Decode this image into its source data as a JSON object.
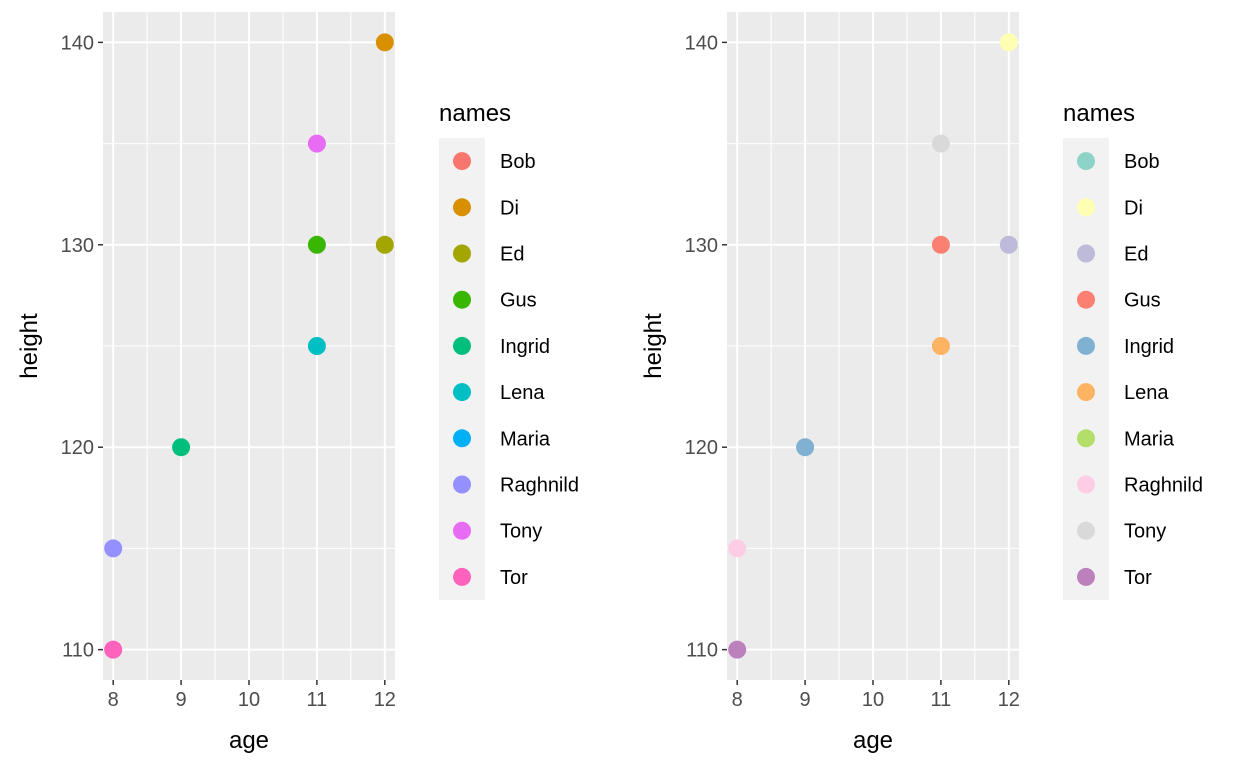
{
  "chart_data": [
    {
      "type": "scatter",
      "xlabel": "age",
      "ylabel": "height",
      "xlim": [
        7.85,
        12.15
      ],
      "ylim": [
        108.5,
        141.5
      ],
      "x_ticks": [
        8,
        9,
        10,
        11,
        12
      ],
      "y_ticks": [
        110,
        120,
        130,
        140
      ],
      "x_tick_labels": [
        "8",
        "9",
        "10",
        "11",
        "12"
      ],
      "y_tick_labels": [
        "110",
        "120",
        "130",
        "140"
      ],
      "grid": true,
      "legend": {
        "title": "names",
        "position": "right"
      },
      "series": [
        {
          "name": "Bob",
          "color": "#F8766D",
          "x": [],
          "y": []
        },
        {
          "name": "Di",
          "color": "#D89000",
          "x": [
            12
          ],
          "y": [
            140
          ]
        },
        {
          "name": "Ed",
          "color": "#A3A500",
          "x": [
            12
          ],
          "y": [
            130
          ]
        },
        {
          "name": "Gus",
          "color": "#39B600",
          "x": [
            11
          ],
          "y": [
            130
          ]
        },
        {
          "name": "Ingrid",
          "color": "#00BF7D",
          "x": [
            9
          ],
          "y": [
            120
          ]
        },
        {
          "name": "Lena",
          "color": "#00BFC4",
          "x": [
            11
          ],
          "y": [
            125
          ]
        },
        {
          "name": "Maria",
          "color": "#00B0F6",
          "x": [],
          "y": []
        },
        {
          "name": "Raghnild",
          "color": "#9590FF",
          "x": [
            8
          ],
          "y": [
            115
          ]
        },
        {
          "name": "Tony",
          "color": "#E76BF3",
          "x": [
            11
          ],
          "y": [
            135
          ]
        },
        {
          "name": "Tor",
          "color": "#FF62BC",
          "x": [
            8
          ],
          "y": [
            110
          ]
        }
      ]
    },
    {
      "type": "scatter",
      "xlabel": "age",
      "ylabel": "height",
      "xlim": [
        7.85,
        12.15
      ],
      "ylim": [
        108.5,
        141.5
      ],
      "x_ticks": [
        8,
        9,
        10,
        11,
        12
      ],
      "y_ticks": [
        110,
        120,
        130,
        140
      ],
      "x_tick_labels": [
        "8",
        "9",
        "10",
        "11",
        "12"
      ],
      "y_tick_labels": [
        "110",
        "120",
        "130",
        "140"
      ],
      "grid": true,
      "legend": {
        "title": "names",
        "position": "right"
      },
      "series": [
        {
          "name": "Bob",
          "color": "#8DD3C7",
          "x": [],
          "y": []
        },
        {
          "name": "Di",
          "color": "#FFFFB3",
          "x": [
            12
          ],
          "y": [
            140
          ]
        },
        {
          "name": "Ed",
          "color": "#BEBADA",
          "x": [
            12
          ],
          "y": [
            130
          ]
        },
        {
          "name": "Gus",
          "color": "#FB8072",
          "x": [
            11
          ],
          "y": [
            130
          ]
        },
        {
          "name": "Ingrid",
          "color": "#80B1D3",
          "x": [
            9
          ],
          "y": [
            120
          ]
        },
        {
          "name": "Lena",
          "color": "#FDB462",
          "x": [
            11
          ],
          "y": [
            125
          ]
        },
        {
          "name": "Maria",
          "color": "#B3DE69",
          "x": [],
          "y": []
        },
        {
          "name": "Raghnild",
          "color": "#FCCDE5",
          "x": [
            8
          ],
          "y": [
            115
          ]
        },
        {
          "name": "Tony",
          "color": "#D9D9D9",
          "x": [
            11
          ],
          "y": [
            135
          ]
        },
        {
          "name": "Tor",
          "color": "#BC80BD",
          "x": [
            8
          ],
          "y": [
            110
          ]
        }
      ]
    }
  ]
}
